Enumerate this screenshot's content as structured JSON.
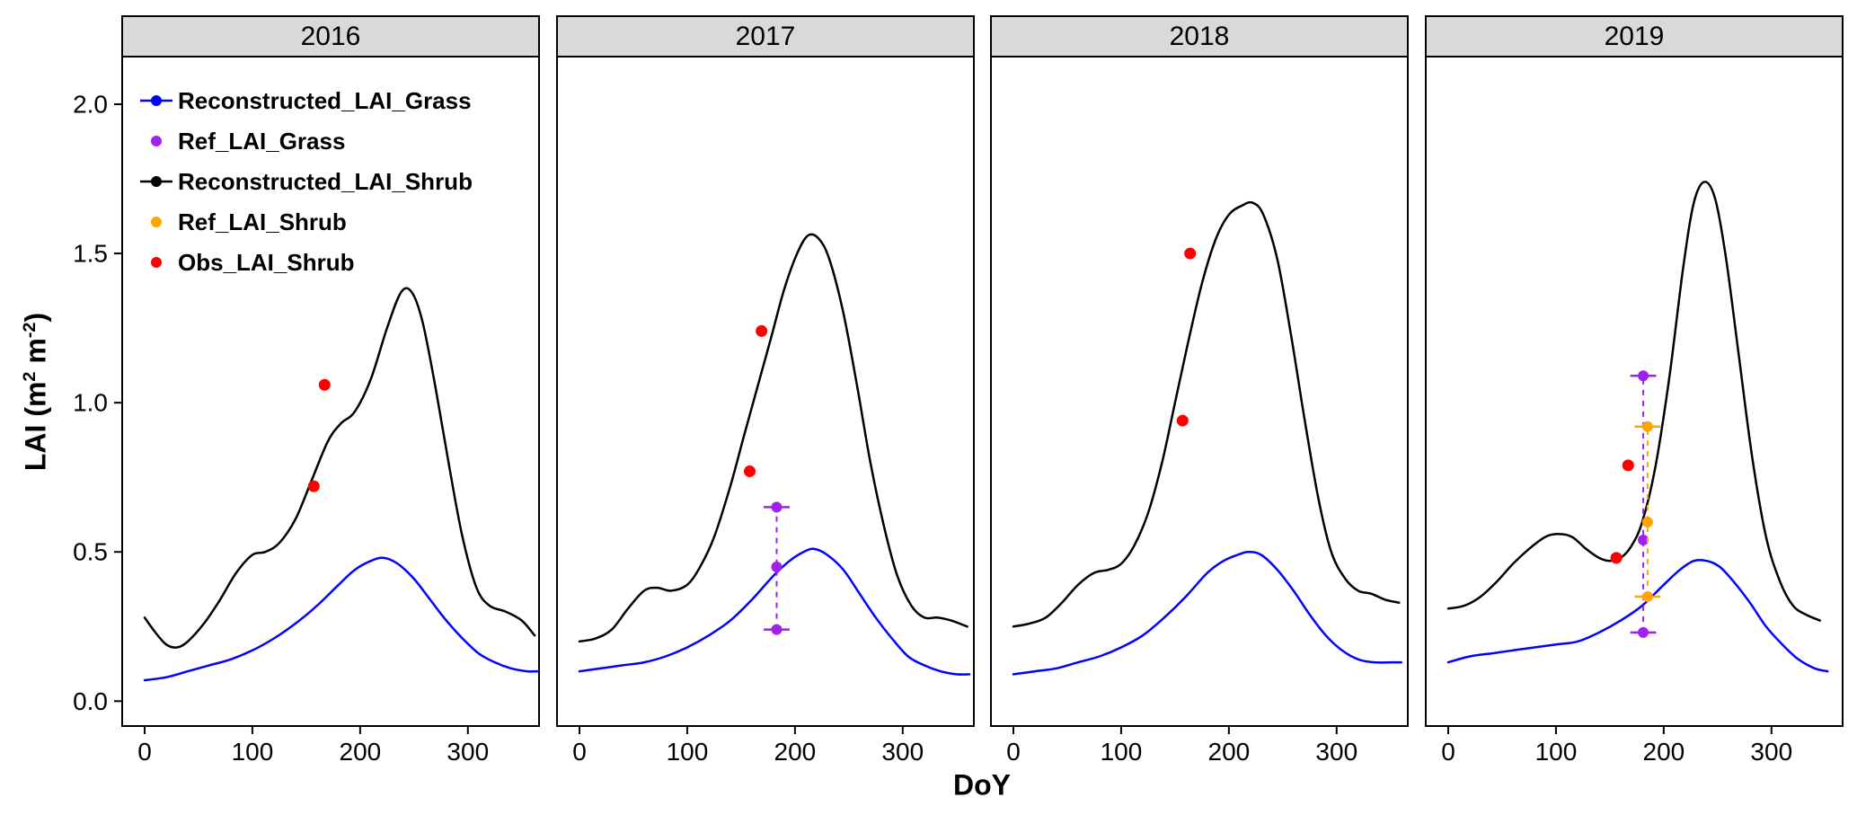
{
  "chart_data": {
    "type": "line",
    "title": "",
    "xlabel": "DoY",
    "ylabel": "LAI (m2 m-2)",
    "ylabel_parts": {
      "p1": "LAI (m",
      "sup1": "2",
      "p2": " m",
      "sup2": "-2",
      "p3": ")"
    },
    "x_ticks": [
      "0",
      "100",
      "200",
      "300"
    ],
    "x_tick_values": [
      0,
      100,
      200,
      300
    ],
    "y_ticks": [
      "0.0",
      "0.5",
      "1.0",
      "1.5",
      "2.0"
    ],
    "y_tick_values": [
      0,
      0.5,
      1.0,
      1.5,
      2.0
    ],
    "xlim": [
      -21,
      366
    ],
    "ylim": [
      -0.083,
      2.16
    ],
    "grid": false,
    "legend_position": "inside-top-left-first-panel",
    "colors": {
      "reconstructed_grass": "#0000FF",
      "ref_grass": "#A020F0",
      "reconstructed_shrub": "#000000",
      "ref_shrub": "#FFA500",
      "obs_shrub": "#FF0000",
      "strip_background": "#D9D9D9",
      "panel_border": "#000000",
      "text": "#000000"
    },
    "legend": [
      {
        "label": "Reconstructed_LAI_Grass",
        "color_key": "reconstructed_grass",
        "marker": "line-dot"
      },
      {
        "label": "Ref_LAI_Grass",
        "color_key": "ref_grass",
        "marker": "dot"
      },
      {
        "label": "Reconstructed_LAI_Shrub",
        "color_key": "reconstructed_shrub",
        "marker": "line-dot"
      },
      {
        "label": "Ref_LAI_Shrub",
        "color_key": "ref_shrub",
        "marker": "dot"
      },
      {
        "label": "Obs_LAI_Shrub",
        "color_key": "obs_shrub",
        "marker": "dot"
      }
    ],
    "panels": [
      {
        "year": "2016",
        "series": {
          "reconstructed_shrub": {
            "x": [
              0,
              10,
              20,
              30,
              40,
              55,
              70,
              85,
              100,
              112,
              125,
              140,
              155,
              170,
              182,
              195,
              210,
              225,
              238,
              248,
              258,
              270,
              283,
              295,
              308,
              320,
              335,
              350,
              362
            ],
            "y": [
              0.28,
              0.23,
              0.19,
              0.18,
              0.2,
              0.26,
              0.34,
              0.43,
              0.49,
              0.5,
              0.53,
              0.61,
              0.74,
              0.87,
              0.93,
              0.97,
              1.08,
              1.25,
              1.37,
              1.37,
              1.27,
              1.05,
              0.78,
              0.55,
              0.38,
              0.32,
              0.3,
              0.27,
              0.22
            ]
          },
          "reconstructed_grass": {
            "x": [
              0,
              20,
              40,
              60,
              80,
              100,
              120,
              140,
              160,
              180,
              195,
              210,
              222,
              235,
              250,
              265,
              280,
              295,
              310,
              325,
              340,
              355,
              365
            ],
            "y": [
              0.07,
              0.08,
              0.1,
              0.12,
              0.14,
              0.17,
              0.21,
              0.26,
              0.32,
              0.39,
              0.44,
              0.47,
              0.48,
              0.46,
              0.41,
              0.34,
              0.27,
              0.21,
              0.16,
              0.13,
              0.11,
              0.1,
              0.1
            ]
          },
          "obs_shrub_points": [
            {
              "x": 157,
              "y": 0.72
            },
            {
              "x": 167,
              "y": 1.06
            }
          ],
          "ref_grass_errorbar": null,
          "ref_shrub_errorbar": null
        }
      },
      {
        "year": "2017",
        "series": {
          "reconstructed_shrub": {
            "x": [
              0,
              15,
              30,
              45,
              60,
              72,
              85,
              100,
              112,
              125,
              140,
              152,
              165,
              178,
              190,
              202,
              212,
              222,
              232,
              245,
              258,
              270,
              283,
              295,
              308,
              320,
              332,
              345,
              360
            ],
            "y": [
              0.2,
              0.21,
              0.24,
              0.31,
              0.37,
              0.38,
              0.37,
              0.39,
              0.45,
              0.55,
              0.72,
              0.88,
              1.05,
              1.22,
              1.38,
              1.5,
              1.56,
              1.55,
              1.48,
              1.3,
              1.05,
              0.8,
              0.58,
              0.42,
              0.32,
              0.28,
              0.28,
              0.27,
              0.25
            ]
          },
          "reconstructed_grass": {
            "x": [
              0,
              20,
              40,
              60,
              80,
              100,
              120,
              140,
              160,
              180,
              195,
              208,
              218,
              230,
              245,
              260,
              275,
              290,
              305,
              320,
              335,
              350,
              362
            ],
            "y": [
              0.1,
              0.11,
              0.12,
              0.13,
              0.15,
              0.18,
              0.22,
              0.27,
              0.34,
              0.42,
              0.47,
              0.5,
              0.51,
              0.49,
              0.44,
              0.36,
              0.28,
              0.21,
              0.15,
              0.12,
              0.1,
              0.09,
              0.09
            ]
          },
          "obs_shrub_points": [
            {
              "x": 158,
              "y": 0.77
            },
            {
              "x": 169,
              "y": 1.24
            }
          ],
          "ref_grass_errorbar": {
            "x": 183,
            "ymin": 0.24,
            "ymax": 0.65,
            "points": [
              0.24,
              0.45,
              0.65
            ],
            "cap_halfwidth_doy": 12
          },
          "ref_shrub_errorbar": null
        }
      },
      {
        "year": "2018",
        "series": {
          "reconstructed_shrub": {
            "x": [
              0,
              15,
              30,
              45,
              60,
              75,
              88,
              100,
              112,
              125,
              138,
              150,
              162,
              175,
              188,
              200,
              212,
              222,
              232,
              245,
              258,
              270,
              283,
              295,
              308,
              320,
              332,
              345,
              358
            ],
            "y": [
              0.25,
              0.26,
              0.28,
              0.33,
              0.39,
              0.43,
              0.44,
              0.46,
              0.52,
              0.63,
              0.8,
              1.0,
              1.2,
              1.4,
              1.55,
              1.63,
              1.66,
              1.67,
              1.63,
              1.48,
              1.22,
              0.95,
              0.68,
              0.5,
              0.41,
              0.37,
              0.36,
              0.34,
              0.33
            ]
          },
          "reconstructed_grass": {
            "x": [
              0,
              20,
              40,
              60,
              80,
              100,
              120,
              140,
              160,
              180,
              195,
              208,
              218,
              230,
              245,
              260,
              275,
              290,
              305,
              320,
              335,
              350,
              360
            ],
            "y": [
              0.09,
              0.1,
              0.11,
              0.13,
              0.15,
              0.18,
              0.22,
              0.28,
              0.35,
              0.43,
              0.47,
              0.49,
              0.5,
              0.49,
              0.44,
              0.37,
              0.29,
              0.22,
              0.17,
              0.14,
              0.13,
              0.13,
              0.13
            ]
          },
          "obs_shrub_points": [
            {
              "x": 157,
              "y": 0.94
            },
            {
              "x": 164,
              "y": 1.5
            }
          ],
          "ref_grass_errorbar": null,
          "ref_shrub_errorbar": null
        }
      },
      {
        "year": "2019",
        "series": {
          "reconstructed_shrub": {
            "x": [
              0,
              15,
              30,
              45,
              60,
              75,
              90,
              102,
              115,
              128,
              140,
              150,
              160,
              170,
              180,
              192,
              205,
              218,
              228,
              238,
              248,
              258,
              270,
              282,
              295,
              308,
              320,
              332,
              345
            ],
            "y": [
              0.31,
              0.32,
              0.35,
              0.4,
              0.46,
              0.51,
              0.55,
              0.56,
              0.55,
              0.51,
              0.48,
              0.47,
              0.48,
              0.52,
              0.6,
              0.78,
              1.08,
              1.45,
              1.67,
              1.74,
              1.68,
              1.48,
              1.15,
              0.82,
              0.55,
              0.4,
              0.32,
              0.29,
              0.27
            ]
          },
          "reconstructed_grass": {
            "x": [
              0,
              20,
              40,
              60,
              80,
              100,
              120,
              140,
              160,
              180,
              200,
              215,
              228,
              240,
              252,
              265,
              280,
              295,
              310,
              325,
              340,
              352
            ],
            "y": [
              0.13,
              0.15,
              0.16,
              0.17,
              0.18,
              0.19,
              0.2,
              0.23,
              0.27,
              0.32,
              0.39,
              0.44,
              0.47,
              0.47,
              0.45,
              0.4,
              0.33,
              0.25,
              0.19,
              0.14,
              0.11,
              0.1
            ]
          },
          "obs_shrub_points": [
            {
              "x": 156,
              "y": 0.48
            },
            {
              "x": 167,
              "y": 0.79
            }
          ],
          "ref_grass_errorbar": {
            "x": 181,
            "ymin": 0.23,
            "ymax": 1.09,
            "points": [
              0.23,
              0.54,
              1.09
            ],
            "cap_halfwidth_doy": 12
          },
          "ref_shrub_errorbar": {
            "x": 185,
            "ymin": 0.35,
            "ymax": 0.92,
            "points": [
              0.35,
              0.6,
              0.92
            ],
            "cap_halfwidth_doy": 12
          }
        }
      }
    ]
  }
}
